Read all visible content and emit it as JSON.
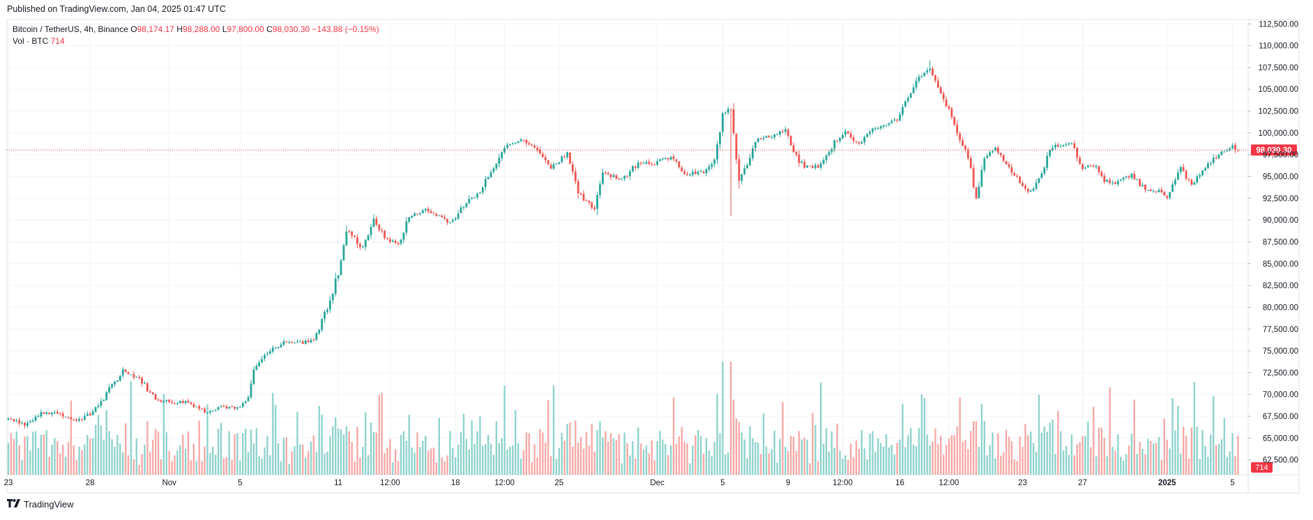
{
  "header": {
    "published": "Published on TradingView.com, Jan 04, 2025 01:47 UTC"
  },
  "legend": {
    "symbol": "Bitcoin / TetherUS, 4h, Binance",
    "o_label": "O",
    "o": "98,174.17",
    "h_label": "H",
    "h": "98,288.00",
    "l_label": "L",
    "l": "97,800.00",
    "c_label": "C",
    "c": "98,030.30",
    "change": "−143.88 (−0.15%)",
    "vol_label": "Vol · BTC",
    "vol": "714"
  },
  "footer": {
    "brand": "TradingView",
    "logo_icon": "tradingview-logo-icon"
  },
  "colors": {
    "up": "#26a69a",
    "down": "#ef5350",
    "up_vol": "#8fd3cc",
    "down_vol": "#f7a9a7",
    "last": "#f23645",
    "grid": "#f0f3fa",
    "axis_text": "#131722"
  },
  "chart_data": {
    "type": "candlestick",
    "title": "Bitcoin / TetherUS, 4h, Binance",
    "price_axis": {
      "ylim": [
        60800,
        113000
      ],
      "ticks": [
        "112,500.00",
        "110,000.00",
        "107,500.00",
        "105,000.00",
        "102,500.00",
        "100,000.00",
        "97,500.00",
        "95,000.00",
        "92,500.00",
        "90,000.00",
        "87,500.00",
        "85,000.00",
        "82,500.00",
        "80,000.00",
        "77,500.00",
        "75,000.00",
        "72,500.00",
        "70,000.00",
        "67,500.00",
        "65,000.00",
        "62,500.00"
      ],
      "tick_values": [
        112500,
        110000,
        107500,
        105000,
        102500,
        100000,
        97500,
        95000,
        92500,
        90000,
        87500,
        85000,
        82500,
        80000,
        77500,
        75000,
        72500,
        70000,
        67500,
        65000,
        62500
      ]
    },
    "last_price": {
      "value": 98030.3,
      "label": "98,030.30"
    },
    "volume_label": "714",
    "time_axis": {
      "labels": [
        "23",
        "28",
        "Nov",
        "5",
        "11",
        "12:00",
        "18",
        "12:00",
        "25",
        "Dec",
        "5",
        "9",
        "12:00",
        "16",
        "12:00",
        "23",
        "27",
        "2025",
        "5"
      ],
      "label_bars": [
        0,
        30,
        59,
        85,
        121,
        140,
        164,
        182,
        202,
        238,
        262,
        286,
        306,
        327,
        345,
        372,
        394,
        425,
        449
      ],
      "bold": [
        "2025"
      ]
    },
    "anchors": [
      [
        0,
        67400
      ],
      [
        6,
        66500
      ],
      [
        12,
        67800
      ],
      [
        18,
        68000
      ],
      [
        24,
        67000
      ],
      [
        30,
        67700
      ],
      [
        36,
        70000
      ],
      [
        42,
        72800
      ],
      [
        48,
        71800
      ],
      [
        54,
        69500
      ],
      [
        60,
        69100
      ],
      [
        66,
        69200
      ],
      [
        72,
        68000
      ],
      [
        78,
        68700
      ],
      [
        84,
        68300
      ],
      [
        88,
        69400
      ],
      [
        90,
        72800
      ],
      [
        95,
        74800
      ],
      [
        102,
        76200
      ],
      [
        108,
        75900
      ],
      [
        112,
        76400
      ],
      [
        117,
        80000
      ],
      [
        121,
        84000
      ],
      [
        124,
        88800
      ],
      [
        130,
        86800
      ],
      [
        134,
        90000
      ],
      [
        138,
        88000
      ],
      [
        143,
        87200
      ],
      [
        147,
        90300
      ],
      [
        152,
        91200
      ],
      [
        158,
        90500
      ],
      [
        162,
        89800
      ],
      [
        168,
        91900
      ],
      [
        173,
        93300
      ],
      [
        178,
        96200
      ],
      [
        183,
        98800
      ],
      [
        188,
        99200
      ],
      [
        194,
        98100
      ],
      [
        199,
        96000
      ],
      [
        205,
        97800
      ],
      [
        209,
        93000
      ],
      [
        215,
        91200
      ],
      [
        218,
        95600
      ],
      [
        225,
        94600
      ],
      [
        231,
        96700
      ],
      [
        237,
        96500
      ],
      [
        243,
        97300
      ],
      [
        248,
        95200
      ],
      [
        255,
        95500
      ],
      [
        259,
        96600
      ],
      [
        262,
        102000
      ],
      [
        265,
        103200
      ],
      [
        268,
        94700
      ],
      [
        271,
        96600
      ],
      [
        274,
        99100
      ],
      [
        280,
        99700
      ],
      [
        285,
        100300
      ],
      [
        288,
        97600
      ],
      [
        292,
        96100
      ],
      [
        298,
        96200
      ],
      [
        303,
        99000
      ],
      [
        307,
        100100
      ],
      [
        312,
        98800
      ],
      [
        316,
        100200
      ],
      [
        321,
        100900
      ],
      [
        326,
        101500
      ],
      [
        330,
        104000
      ],
      [
        334,
        106500
      ],
      [
        338,
        107200
      ],
      [
        341,
        105200
      ],
      [
        345,
        102500
      ],
      [
        348,
        100100
      ],
      [
        352,
        97000
      ],
      [
        355,
        92700
      ],
      [
        358,
        97200
      ],
      [
        362,
        98300
      ],
      [
        365,
        96900
      ],
      [
        369,
        95300
      ],
      [
        374,
        93000
      ],
      [
        378,
        94500
      ],
      [
        382,
        98200
      ],
      [
        386,
        98600
      ],
      [
        390,
        98800
      ],
      [
        394,
        95800
      ],
      [
        398,
        96400
      ],
      [
        402,
        94500
      ],
      [
        406,
        94300
      ],
      [
        412,
        95100
      ],
      [
        417,
        93600
      ],
      [
        422,
        93400
      ],
      [
        425,
        92500
      ],
      [
        430,
        95900
      ],
      [
        434,
        94200
      ],
      [
        438,
        95500
      ],
      [
        442,
        97000
      ],
      [
        446,
        97900
      ],
      [
        449,
        98400
      ],
      [
        451,
        98030
      ]
    ],
    "volume_max": 3100,
    "volume_seed": 7
  }
}
